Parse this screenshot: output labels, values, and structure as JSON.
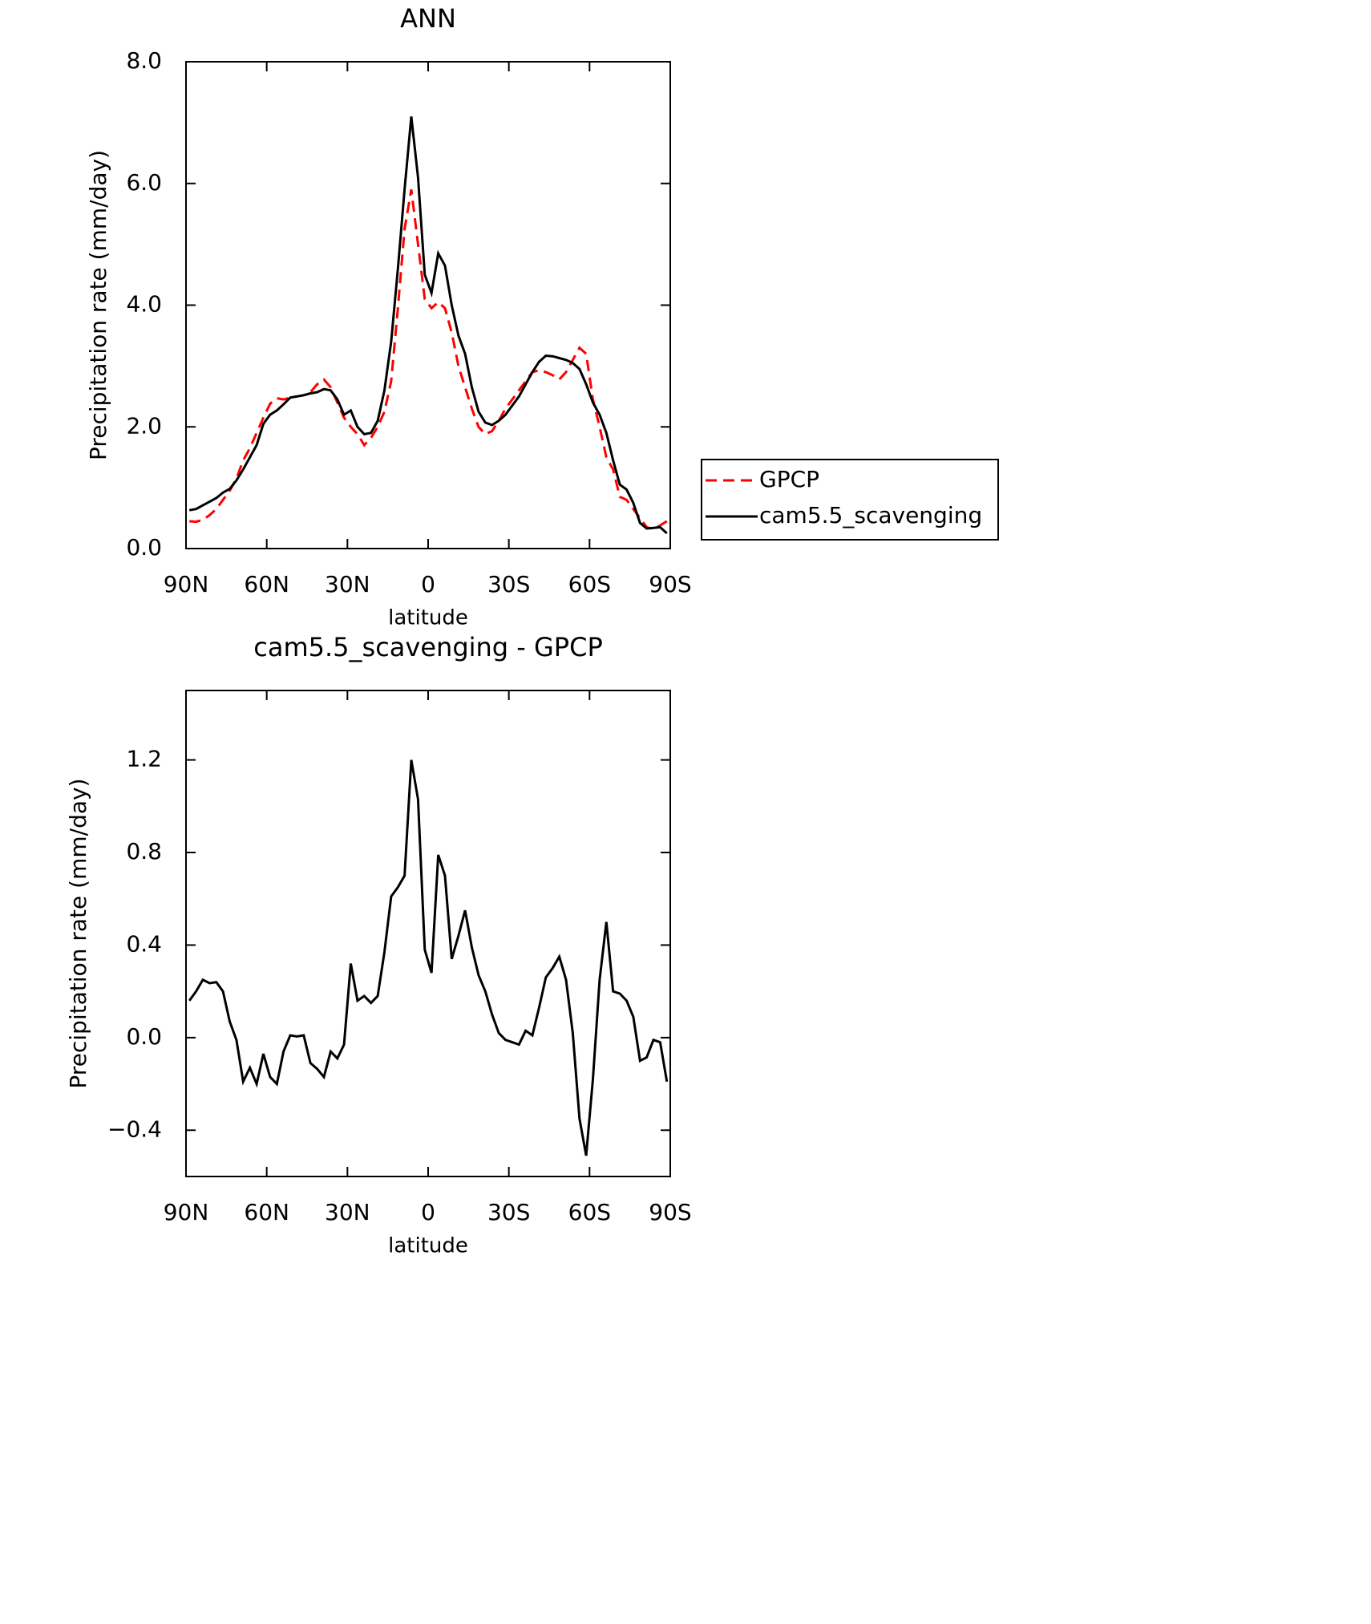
{
  "chart_data": [
    {
      "type": "line",
      "title": "ANN",
      "xlabel": "latitude",
      "ylabel": "Precipitation rate (mm/day)",
      "x": [
        88.75,
        86.25,
        83.75,
        81.25,
        78.75,
        76.25,
        73.75,
        71.25,
        68.75,
        66.25,
        63.75,
        61.25,
        58.75,
        56.25,
        53.75,
        51.25,
        48.75,
        46.25,
        43.75,
        41.25,
        38.75,
        36.25,
        33.75,
        31.25,
        28.75,
        26.25,
        23.75,
        21.25,
        18.75,
        16.25,
        13.75,
        11.25,
        8.75,
        6.25,
        3.75,
        1.25,
        -1.25,
        -3.75,
        -6.25,
        -8.75,
        -11.25,
        -13.75,
        -16.25,
        -18.75,
        -21.25,
        -23.75,
        -26.25,
        -28.75,
        -31.25,
        -33.75,
        -36.25,
        -38.75,
        -41.25,
        -43.75,
        -46.25,
        -48.75,
        -51.25,
        -53.75,
        -56.25,
        -58.75,
        -61.25,
        -63.75,
        -66.25,
        -68.75,
        -71.25,
        -73.75,
        -76.25,
        -78.75,
        -81.25,
        -83.75,
        -86.25,
        -88.75
      ],
      "series": [
        {
          "name": "GPCP",
          "color": "#ff0000",
          "dash": true,
          "values": [
            0.45,
            0.44,
            0.47,
            0.55,
            0.65,
            0.8,
            0.95,
            1.15,
            1.45,
            1.65,
            1.9,
            2.15,
            2.38,
            2.47,
            2.45,
            2.48,
            2.5,
            2.52,
            2.57,
            2.7,
            2.78,
            2.65,
            2.4,
            2.15,
            2.0,
            1.88,
            1.7,
            1.82,
            2.0,
            2.25,
            2.75,
            3.95,
            5.25,
            5.9,
            5.0,
            4.1,
            3.95,
            4.05,
            3.95,
            3.55,
            3.0,
            2.65,
            2.3,
            2.0,
            1.88,
            1.93,
            2.1,
            2.3,
            2.45,
            2.6,
            2.75,
            2.9,
            2.93,
            2.9,
            2.85,
            2.78,
            2.9,
            3.1,
            3.3,
            3.2,
            2.45,
            2.0,
            1.5,
            1.3,
            0.85,
            0.8,
            0.65,
            0.5,
            0.35,
            0.32,
            0.38,
            0.45
          ]
        },
        {
          "name": "cam5.5_scavenging",
          "color": "#000000",
          "dash": false,
          "values": [
            0.63,
            0.65,
            0.71,
            0.77,
            0.83,
            0.92,
            0.98,
            1.12,
            1.3,
            1.5,
            1.7,
            2.05,
            2.2,
            2.27,
            2.37,
            2.48,
            2.5,
            2.52,
            2.55,
            2.57,
            2.62,
            2.6,
            2.45,
            2.2,
            2.27,
            2.0,
            1.88,
            1.9,
            2.1,
            2.6,
            3.4,
            4.6,
            5.9,
            7.1,
            6.1,
            4.5,
            4.2,
            4.85,
            4.65,
            4.0,
            3.5,
            3.2,
            2.65,
            2.25,
            2.07,
            2.03,
            2.1,
            2.2,
            2.35,
            2.5,
            2.7,
            2.9,
            3.07,
            3.17,
            3.16,
            3.13,
            3.1,
            3.05,
            2.95,
            2.7,
            2.4,
            2.2,
            1.9,
            1.45,
            1.05,
            0.97,
            0.75,
            0.42,
            0.33,
            0.34,
            0.35,
            0.25
          ]
        }
      ],
      "xlim": [
        90,
        -90
      ],
      "xticks": [
        {
          "value": 90,
          "label": "90N"
        },
        {
          "value": 60,
          "label": "60N"
        },
        {
          "value": 30,
          "label": "30N"
        },
        0,
        {
          "value": -30,
          "label": "30S"
        },
        {
          "value": -60,
          "label": "60S"
        },
        {
          "value": -90,
          "label": "90S"
        }
      ],
      "ylim": [
        0,
        8
      ],
      "yticks": [
        {
          "value": 0,
          "label": "0.0"
        },
        {
          "value": 2,
          "label": "2.0"
        },
        {
          "value": 4,
          "label": "4.0"
        },
        {
          "value": 6,
          "label": "6.0"
        },
        {
          "value": 8,
          "label": "8.0"
        }
      ],
      "legend": "right"
    },
    {
      "type": "line",
      "title": "cam5.5_scavenging - GPCP",
      "xlabel": "latitude",
      "ylabel": "Precipitation rate (mm/day)",
      "x": [
        88.75,
        86.25,
        83.75,
        81.25,
        78.75,
        76.25,
        73.75,
        71.25,
        68.75,
        66.25,
        63.75,
        61.25,
        58.75,
        56.25,
        53.75,
        51.25,
        48.75,
        46.25,
        43.75,
        41.25,
        38.75,
        36.25,
        33.75,
        31.25,
        28.75,
        26.25,
        23.75,
        21.25,
        18.75,
        16.25,
        13.75,
        11.25,
        8.75,
        6.25,
        3.75,
        1.25,
        -1.25,
        -3.75,
        -6.25,
        -8.75,
        -11.25,
        -13.75,
        -16.25,
        -18.75,
        -21.25,
        -23.75,
        -26.25,
        -28.75,
        -31.25,
        -33.75,
        -36.25,
        -38.75,
        -41.25,
        -43.75,
        -46.25,
        -48.75,
        -51.25,
        -53.75,
        -56.25,
        -58.75,
        -61.25,
        -63.75,
        -66.25,
        -68.75,
        -71.25,
        -73.75,
        -76.25,
        -78.75,
        -81.25,
        -83.75,
        -86.25,
        -88.75
      ],
      "values": [
        0.16,
        0.2,
        0.25,
        0.235,
        0.24,
        0.2,
        0.07,
        -0.01,
        -0.19,
        -0.13,
        -0.2,
        -0.07,
        -0.17,
        -0.2,
        -0.06,
        0.01,
        0.005,
        0.01,
        -0.11,
        -0.135,
        -0.17,
        -0.06,
        -0.09,
        -0.03,
        0.32,
        0.16,
        0.18,
        0.15,
        0.18,
        0.37,
        0.61,
        0.65,
        0.7,
        1.2,
        1.03,
        0.38,
        0.28,
        0.79,
        0.7,
        0.34,
        0.44,
        0.55,
        0.39,
        0.27,
        0.2,
        0.1,
        0.02,
        -0.01,
        -0.02,
        -0.03,
        0.03,
        0.01,
        0.13,
        0.26,
        0.3,
        0.35,
        0.25,
        0.02,
        -0.35,
        -0.51,
        -0.18,
        0.25,
        0.5,
        0.2,
        0.19,
        0.16,
        0.09,
        -0.1,
        -0.085,
        -0.01,
        -0.02,
        -0.19
      ],
      "color": "#000000",
      "xlim": [
        90,
        -90
      ],
      "xticks": [
        {
          "value": 90,
          "label": "90N"
        },
        {
          "value": 60,
          "label": "60N"
        },
        {
          "value": 30,
          "label": "30N"
        },
        0,
        {
          "value": -30,
          "label": "30S"
        },
        {
          "value": -60,
          "label": "60S"
        },
        {
          "value": -90,
          "label": "90S"
        }
      ],
      "ylim": [
        -0.6,
        1.5
      ],
      "yticks": [
        {
          "value": -0.4,
          "label": "−0.4"
        },
        {
          "value": 0,
          "label": "0.0"
        },
        {
          "value": 0.4,
          "label": "0.4"
        },
        {
          "value": 0.8,
          "label": "0.8"
        },
        {
          "value": 1.2,
          "label": "1.2"
        }
      ]
    }
  ]
}
